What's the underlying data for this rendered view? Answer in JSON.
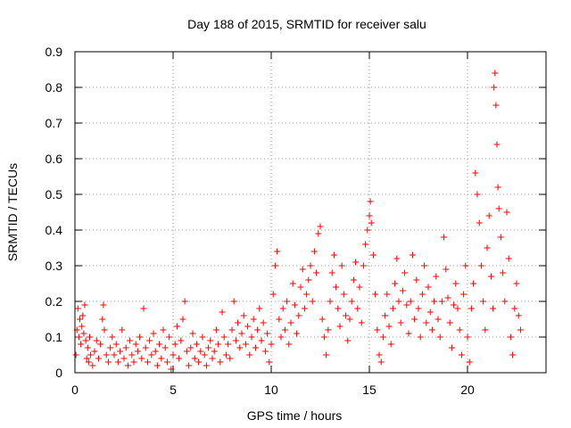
{
  "chart_data": {
    "type": "scatter",
    "title": "Day 188 of 2015, SRMTID for receiver salu",
    "xlabel": "GPS time / hours",
    "ylabel": "SRMTID / TECUs",
    "xlim": [
      0,
      24
    ],
    "ylim": [
      0,
      0.9
    ],
    "x_ticks": [
      0,
      5,
      10,
      15,
      20
    ],
    "x_tick_labels": [
      "0",
      "5",
      "10",
      "15",
      "20"
    ],
    "y_ticks": [
      0,
      0.1,
      0.2,
      0.3,
      0.4,
      0.5,
      0.6,
      0.7,
      0.8,
      0.9
    ],
    "y_tick_labels": [
      "0",
      "0.1",
      "0.2",
      "0.3",
      "0.4",
      "0.5",
      "0.6",
      "0.7",
      "0.8",
      "0.9"
    ],
    "grid": true,
    "marker": "+",
    "color": "#ff0000",
    "series": [
      {
        "name": "SRMTID",
        "points": [
          [
            0.05,
            0.05
          ],
          [
            0.1,
            0.12
          ],
          [
            0.15,
            0.18
          ],
          [
            0.2,
            0.1
          ],
          [
            0.25,
            0.15
          ],
          [
            0.3,
            0.08
          ],
          [
            0.35,
            0.13
          ],
          [
            0.4,
            0.16
          ],
          [
            0.45,
            0.11
          ],
          [
            0.5,
            0.19
          ],
          [
            0.55,
            0.09
          ],
          [
            0.6,
            0.04
          ],
          [
            0.65,
            0.07
          ],
          [
            0.7,
            0.03
          ],
          [
            0.75,
            0.1
          ],
          [
            0.8,
            0.05
          ],
          [
            0.9,
            0.02
          ],
          [
            1.0,
            0.06
          ],
          [
            1.1,
            0.09
          ],
          [
            1.2,
            0.04
          ],
          [
            1.3,
            0.08
          ],
          [
            1.4,
            0.15
          ],
          [
            1.45,
            0.19
          ],
          [
            1.5,
            0.12
          ],
          [
            1.6,
            0.05
          ],
          [
            1.7,
            0.03
          ],
          [
            1.8,
            0.07
          ],
          [
            1.9,
            0.1
          ],
          [
            2.0,
            0.05
          ],
          [
            2.1,
            0.08
          ],
          [
            2.2,
            0.03
          ],
          [
            2.3,
            0.06
          ],
          [
            2.4,
            0.12
          ],
          [
            2.5,
            0.04
          ],
          [
            2.6,
            0.07
          ],
          [
            2.7,
            0.02
          ],
          [
            2.8,
            0.09
          ],
          [
            2.9,
            0.05
          ],
          [
            3.0,
            0.03
          ],
          [
            3.1,
            0.08
          ],
          [
            3.2,
            0.06
          ],
          [
            3.3,
            0.1
          ],
          [
            3.4,
            0.04
          ],
          [
            3.5,
            0.18
          ],
          [
            3.6,
            0.07
          ],
          [
            3.7,
            0.03
          ],
          [
            3.8,
            0.09
          ],
          [
            3.9,
            0.05
          ],
          [
            4.0,
            0.11
          ],
          [
            4.1,
            0.06
          ],
          [
            4.2,
            0.02
          ],
          [
            4.3,
            0.08
          ],
          [
            4.4,
            0.04
          ],
          [
            4.5,
            0.12
          ],
          [
            4.6,
            0.07
          ],
          [
            4.7,
            0.03
          ],
          [
            4.8,
            0.1
          ],
          [
            4.9,
            0.01
          ],
          [
            5.0,
            0.05
          ],
          [
            5.1,
            0.08
          ],
          [
            5.2,
            0.13
          ],
          [
            5.3,
            0.04
          ],
          [
            5.4,
            0.09
          ],
          [
            5.5,
            0.15
          ],
          [
            5.6,
            0.2
          ],
          [
            5.7,
            0.06
          ],
          [
            5.8,
            0.02
          ],
          [
            5.9,
            0.07
          ],
          [
            6.0,
            0.11
          ],
          [
            6.1,
            0.04
          ],
          [
            6.2,
            0.08
          ],
          [
            6.3,
            0.03
          ],
          [
            6.4,
            0.06
          ],
          [
            6.5,
            0.1
          ],
          [
            6.6,
            0.05
          ],
          [
            6.7,
            0.02
          ],
          [
            6.8,
            0.07
          ],
          [
            6.9,
            0.09
          ],
          [
            7.0,
            0.04
          ],
          [
            7.1,
            0.06
          ],
          [
            7.2,
            0.12
          ],
          [
            7.3,
            0.08
          ],
          [
            7.4,
            0.03
          ],
          [
            7.5,
            0.17
          ],
          [
            7.6,
            0.1
          ],
          [
            7.7,
            0.05
          ],
          [
            7.8,
            0.08
          ],
          [
            7.9,
            0.04
          ],
          [
            8.0,
            0.12
          ],
          [
            8.1,
            0.2
          ],
          [
            8.2,
            0.09
          ],
          [
            8.3,
            0.14
          ],
          [
            8.4,
            0.07
          ],
          [
            8.5,
            0.11
          ],
          [
            8.6,
            0.16
          ],
          [
            8.7,
            0.08
          ],
          [
            8.8,
            0.13
          ],
          [
            8.9,
            0.05
          ],
          [
            9.0,
            0.1
          ],
          [
            9.1,
            0.15
          ],
          [
            9.2,
            0.07
          ],
          [
            9.3,
            0.12
          ],
          [
            9.4,
            0.18
          ],
          [
            9.5,
            0.09
          ],
          [
            9.6,
            0.14
          ],
          [
            9.7,
            0.06
          ],
          [
            9.8,
            0.11
          ],
          [
            9.9,
            0.03
          ],
          [
            10.0,
            0.08
          ],
          [
            10.1,
            0.22
          ],
          [
            10.2,
            0.3
          ],
          [
            10.3,
            0.34
          ],
          [
            10.4,
            0.15
          ],
          [
            10.5,
            0.1
          ],
          [
            10.6,
            0.18
          ],
          [
            10.7,
            0.12
          ],
          [
            10.8,
            0.2
          ],
          [
            10.9,
            0.08
          ],
          [
            11.0,
            0.14
          ],
          [
            11.1,
            0.25
          ],
          [
            11.2,
            0.19
          ],
          [
            11.3,
            0.11
          ],
          [
            11.4,
            0.16
          ],
          [
            11.5,
            0.24
          ],
          [
            11.6,
            0.29
          ],
          [
            11.7,
            0.18
          ],
          [
            11.8,
            0.22
          ],
          [
            11.9,
            0.26
          ],
          [
            12.0,
            0.3
          ],
          [
            12.1,
            0.2
          ],
          [
            12.2,
            0.34
          ],
          [
            12.3,
            0.28
          ],
          [
            12.4,
            0.39
          ],
          [
            12.5,
            0.41
          ],
          [
            12.6,
            0.15
          ],
          [
            12.7,
            0.1
          ],
          [
            12.8,
            0.05
          ],
          [
            12.9,
            0.12
          ],
          [
            13.0,
            0.2
          ],
          [
            13.1,
            0.28
          ],
          [
            13.2,
            0.33
          ],
          [
            13.3,
            0.24
          ],
          [
            13.4,
            0.18
          ],
          [
            13.5,
            0.13
          ],
          [
            13.6,
            0.3
          ],
          [
            13.7,
            0.22
          ],
          [
            13.8,
            0.16
          ],
          [
            13.9,
            0.09
          ],
          [
            14.0,
            0.15
          ],
          [
            14.1,
            0.2
          ],
          [
            14.2,
            0.26
          ],
          [
            14.3,
            0.31
          ],
          [
            14.4,
            0.18
          ],
          [
            14.5,
            0.24
          ],
          [
            14.6,
            0.14
          ],
          [
            14.7,
            0.3
          ],
          [
            14.8,
            0.36
          ],
          [
            14.9,
            0.4
          ],
          [
            15.0,
            0.44
          ],
          [
            15.05,
            0.48
          ],
          [
            15.1,
            0.42
          ],
          [
            15.2,
            0.33
          ],
          [
            15.3,
            0.22
          ],
          [
            15.4,
            0.12
          ],
          [
            15.5,
            0.05
          ],
          [
            15.6,
            0.03
          ],
          [
            15.7,
            0.1
          ],
          [
            15.8,
            0.16
          ],
          [
            15.9,
            0.22
          ],
          [
            16.0,
            0.13
          ],
          [
            16.1,
            0.08
          ],
          [
            16.2,
            0.18
          ],
          [
            16.3,
            0.25
          ],
          [
            16.4,
            0.32
          ],
          [
            16.5,
            0.2
          ],
          [
            16.6,
            0.14
          ],
          [
            16.7,
            0.23
          ],
          [
            16.8,
            0.28
          ],
          [
            16.9,
            0.19
          ],
          [
            17.0,
            0.11
          ],
          [
            17.1,
            0.2
          ],
          [
            17.2,
            0.33
          ],
          [
            17.3,
            0.15
          ],
          [
            17.4,
            0.26
          ],
          [
            17.5,
            0.18
          ],
          [
            17.6,
            0.1
          ],
          [
            17.7,
            0.22
          ],
          [
            17.8,
            0.3
          ],
          [
            17.9,
            0.14
          ],
          [
            18.0,
            0.24
          ],
          [
            18.1,
            0.17
          ],
          [
            18.2,
            0.12
          ],
          [
            18.3,
            0.2
          ],
          [
            18.4,
            0.27
          ],
          [
            18.5,
            0.15
          ],
          [
            18.6,
            0.1
          ],
          [
            18.7,
            0.2
          ],
          [
            18.8,
            0.38
          ],
          [
            18.9,
            0.29
          ],
          [
            19.0,
            0.21
          ],
          [
            19.1,
            0.14
          ],
          [
            19.2,
            0.07
          ],
          [
            19.3,
            0.19
          ],
          [
            19.4,
            0.25
          ],
          [
            19.5,
            0.18
          ],
          [
            19.6,
            0.12
          ],
          [
            19.7,
            0.05
          ],
          [
            19.8,
            0.22
          ],
          [
            19.9,
            0.3
          ],
          [
            20.0,
            0.1
          ],
          [
            20.1,
            0.03
          ],
          [
            20.2,
            0.18
          ],
          [
            20.3,
            0.25
          ],
          [
            20.4,
            0.56
          ],
          [
            20.5,
            0.5
          ],
          [
            20.6,
            0.42
          ],
          [
            20.7,
            0.3
          ],
          [
            20.8,
            0.2
          ],
          [
            20.9,
            0.12
          ],
          [
            21.0,
            0.35
          ],
          [
            21.1,
            0.44
          ],
          [
            21.2,
            0.27
          ],
          [
            21.3,
            0.18
          ],
          [
            21.35,
            0.8
          ],
          [
            21.4,
            0.84
          ],
          [
            21.45,
            0.75
          ],
          [
            21.5,
            0.64
          ],
          [
            21.55,
            0.52
          ],
          [
            21.6,
            0.46
          ],
          [
            21.7,
            0.38
          ],
          [
            21.8,
            0.28
          ],
          [
            21.9,
            0.2
          ],
          [
            22.0,
            0.45
          ],
          [
            22.1,
            0.32
          ],
          [
            22.2,
            0.1
          ],
          [
            22.3,
            0.05
          ],
          [
            22.4,
            0.18
          ],
          [
            22.5,
            0.25
          ],
          [
            22.6,
            0.16
          ],
          [
            22.7,
            0.12
          ]
        ]
      }
    ]
  }
}
